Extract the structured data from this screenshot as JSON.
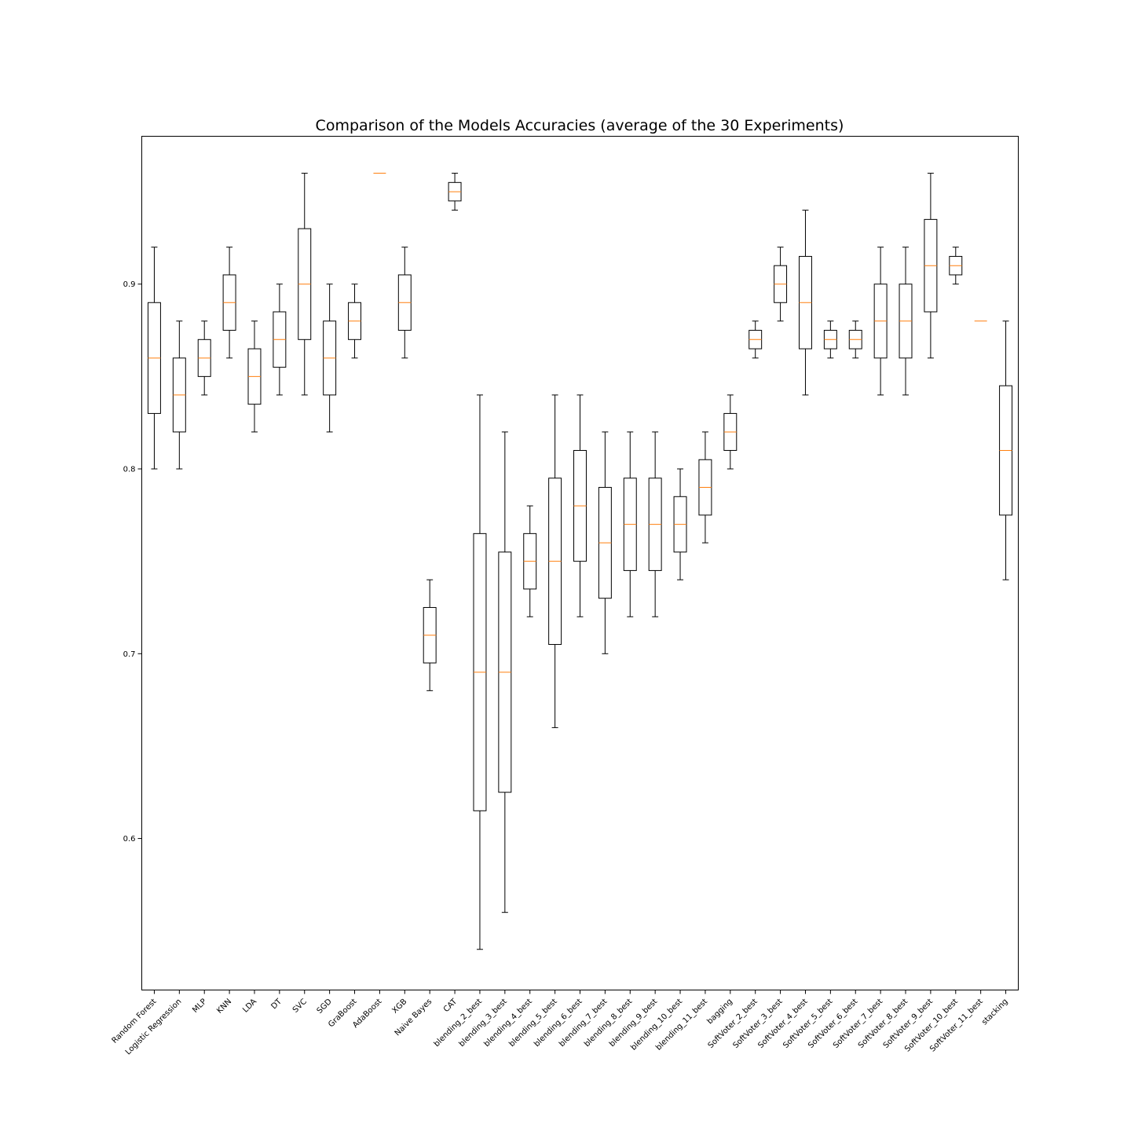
{
  "chart_data": {
    "type": "box",
    "title": "Comparison of the Models Accuracies (average of the 30 Experiments)",
    "xlabel": "",
    "ylabel": "",
    "ylim": [
      0.518,
      0.98
    ],
    "yticks": [
      0.6,
      0.7,
      0.8,
      0.9
    ],
    "ytick_labels": [
      "0.6",
      "0.7",
      "0.8",
      "0.9"
    ],
    "grid": false,
    "colors": {
      "box": "#000000",
      "median": "#ff7f0e"
    },
    "series": [
      {
        "name": "Random Forest",
        "whisker_low": 0.8,
        "q1": 0.83,
        "median": 0.86,
        "q3": 0.89,
        "whisker_high": 0.92
      },
      {
        "name": "Logistic Regression",
        "whisker_low": 0.8,
        "q1": 0.82,
        "median": 0.84,
        "q3": 0.86,
        "whisker_high": 0.88
      },
      {
        "name": "MLP",
        "whisker_low": 0.84,
        "q1": 0.85,
        "median": 0.86,
        "q3": 0.87,
        "whisker_high": 0.88
      },
      {
        "name": "KNN",
        "whisker_low": 0.86,
        "q1": 0.875,
        "median": 0.89,
        "q3": 0.905,
        "whisker_high": 0.92
      },
      {
        "name": "LDA",
        "whisker_low": 0.82,
        "q1": 0.835,
        "median": 0.85,
        "q3": 0.865,
        "whisker_high": 0.88
      },
      {
        "name": "DT",
        "whisker_low": 0.84,
        "q1": 0.855,
        "median": 0.87,
        "q3": 0.885,
        "whisker_high": 0.9
      },
      {
        "name": "SVC",
        "whisker_low": 0.84,
        "q1": 0.87,
        "median": 0.9,
        "q3": 0.93,
        "whisker_high": 0.96
      },
      {
        "name": "SGD",
        "whisker_low": 0.82,
        "q1": 0.84,
        "median": 0.86,
        "q3": 0.88,
        "whisker_high": 0.9
      },
      {
        "name": "GraBoost",
        "whisker_low": 0.86,
        "q1": 0.87,
        "median": 0.88,
        "q3": 0.89,
        "whisker_high": 0.9
      },
      {
        "name": "AdaBoost",
        "whisker_low": 0.96,
        "q1": 0.96,
        "median": 0.96,
        "q3": 0.96,
        "whisker_high": 0.96
      },
      {
        "name": "XGB",
        "whisker_low": 0.86,
        "q1": 0.875,
        "median": 0.89,
        "q3": 0.905,
        "whisker_high": 0.92
      },
      {
        "name": "Naive Bayes",
        "whisker_low": 0.68,
        "q1": 0.695,
        "median": 0.71,
        "q3": 0.725,
        "whisker_high": 0.74
      },
      {
        "name": "CAT",
        "whisker_low": 0.94,
        "q1": 0.945,
        "median": 0.95,
        "q3": 0.955,
        "whisker_high": 0.96
      },
      {
        "name": "blending_2_best",
        "whisker_low": 0.54,
        "q1": 0.615,
        "median": 0.69,
        "q3": 0.765,
        "whisker_high": 0.84
      },
      {
        "name": "blending_3_best",
        "whisker_low": 0.56,
        "q1": 0.625,
        "median": 0.69,
        "q3": 0.755,
        "whisker_high": 0.82
      },
      {
        "name": "blending_4_best",
        "whisker_low": 0.72,
        "q1": 0.735,
        "median": 0.75,
        "q3": 0.765,
        "whisker_high": 0.78
      },
      {
        "name": "blending_5_best",
        "whisker_low": 0.66,
        "q1": 0.705,
        "median": 0.75,
        "q3": 0.795,
        "whisker_high": 0.84
      },
      {
        "name": "blending_6_best",
        "whisker_low": 0.72,
        "q1": 0.75,
        "median": 0.78,
        "q3": 0.81,
        "whisker_high": 0.84
      },
      {
        "name": "blending_7_best",
        "whisker_low": 0.7,
        "q1": 0.73,
        "median": 0.76,
        "q3": 0.79,
        "whisker_high": 0.82
      },
      {
        "name": "blending_8_best",
        "whisker_low": 0.72,
        "q1": 0.745,
        "median": 0.77,
        "q3": 0.795,
        "whisker_high": 0.82
      },
      {
        "name": "blending_9_best",
        "whisker_low": 0.72,
        "q1": 0.745,
        "median": 0.77,
        "q3": 0.795,
        "whisker_high": 0.82
      },
      {
        "name": "blending_10_best",
        "whisker_low": 0.74,
        "q1": 0.755,
        "median": 0.77,
        "q3": 0.785,
        "whisker_high": 0.8
      },
      {
        "name": "blending_11_best",
        "whisker_low": 0.76,
        "q1": 0.775,
        "median": 0.79,
        "q3": 0.805,
        "whisker_high": 0.82
      },
      {
        "name": "bagging",
        "whisker_low": 0.8,
        "q1": 0.81,
        "median": 0.82,
        "q3": 0.83,
        "whisker_high": 0.84
      },
      {
        "name": "SoftVoter_2_best",
        "whisker_low": 0.86,
        "q1": 0.865,
        "median": 0.87,
        "q3": 0.875,
        "whisker_high": 0.88
      },
      {
        "name": "SoftVoter_3_best",
        "whisker_low": 0.88,
        "q1": 0.89,
        "median": 0.9,
        "q3": 0.91,
        "whisker_high": 0.92
      },
      {
        "name": "SoftVoter_4_best",
        "whisker_low": 0.84,
        "q1": 0.865,
        "median": 0.89,
        "q3": 0.915,
        "whisker_high": 0.94
      },
      {
        "name": "SoftVoter_5_best",
        "whisker_low": 0.86,
        "q1": 0.865,
        "median": 0.87,
        "q3": 0.875,
        "whisker_high": 0.88
      },
      {
        "name": "SoftVoter_6_best",
        "whisker_low": 0.86,
        "q1": 0.865,
        "median": 0.87,
        "q3": 0.875,
        "whisker_high": 0.88
      },
      {
        "name": "SoftVoter_7_best",
        "whisker_low": 0.84,
        "q1": 0.86,
        "median": 0.88,
        "q3": 0.9,
        "whisker_high": 0.92
      },
      {
        "name": "SoftVoter_8_best",
        "whisker_low": 0.84,
        "q1": 0.86,
        "median": 0.88,
        "q3": 0.9,
        "whisker_high": 0.92
      },
      {
        "name": "SoftVoter_9_best",
        "whisker_low": 0.86,
        "q1": 0.885,
        "median": 0.91,
        "q3": 0.935,
        "whisker_high": 0.96
      },
      {
        "name": "SoftVoter_10_best",
        "whisker_low": 0.9,
        "q1": 0.905,
        "median": 0.91,
        "q3": 0.915,
        "whisker_high": 0.92
      },
      {
        "name": "SoftVoter_11_best",
        "whisker_low": 0.88,
        "q1": 0.88,
        "median": 0.88,
        "q3": 0.88,
        "whisker_high": 0.88
      },
      {
        "name": "stacking",
        "whisker_low": 0.74,
        "q1": 0.775,
        "median": 0.81,
        "q3": 0.845,
        "whisker_high": 0.88
      }
    ]
  }
}
